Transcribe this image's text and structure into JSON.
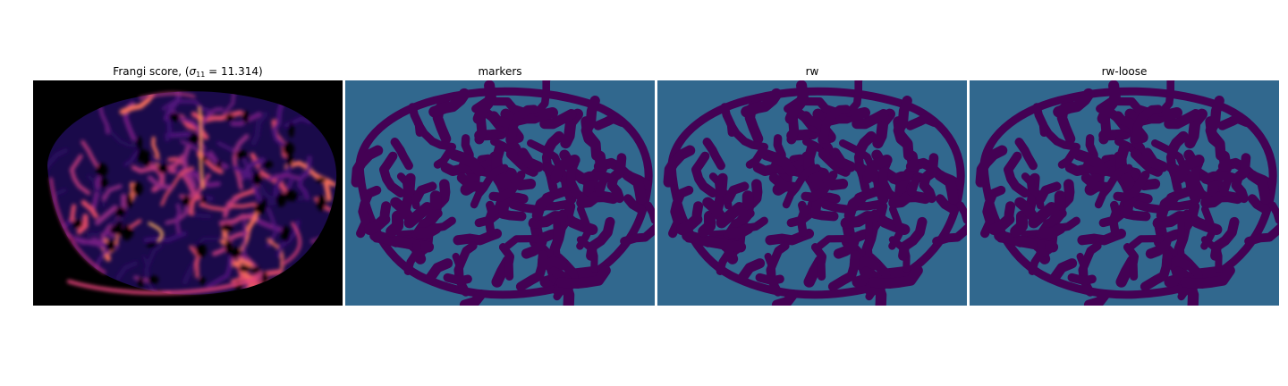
{
  "panels": [
    {
      "id": "frangi",
      "title_prefix": "Frangi score, (",
      "title_symbol": "σ",
      "title_subscript": "11",
      "title_suffix": " = 11.314)",
      "colormap": "magma",
      "background_color": "#000000"
    },
    {
      "id": "markers",
      "title": "markers",
      "colormap": "viridis",
      "background_color": "#31688e",
      "foreground_color": "#440154"
    },
    {
      "id": "rw",
      "title": "rw",
      "colormap": "viridis",
      "background_color": "#31688e",
      "foreground_color": "#440154"
    },
    {
      "id": "rw-loose",
      "title": "rw-loose",
      "colormap": "viridis",
      "background_color": "#31688e",
      "foreground_color": "#440154"
    }
  ]
}
